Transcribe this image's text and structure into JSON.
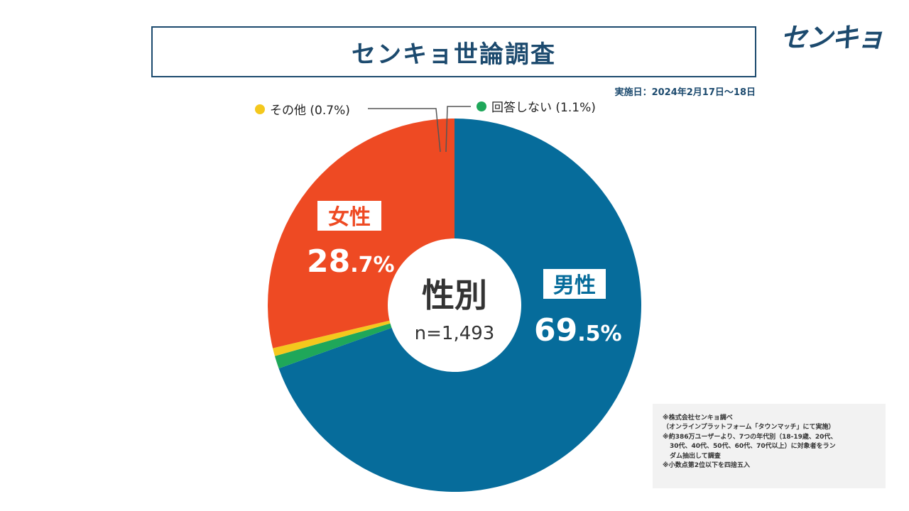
{
  "header": {
    "title": "センキョ世論調査",
    "logo_text": "センキョ",
    "date": "実施日：2024年2月17日～18日"
  },
  "chart_data": {
    "type": "pie",
    "title": "性別",
    "center_label": "性別",
    "center_sub": "n=1,493",
    "slices": [
      {
        "name": "男性",
        "value": 69.5,
        "value_int": "69",
        "value_dec": ".5%",
        "color": "#066c9b"
      },
      {
        "name": "女性",
        "value": 28.7,
        "value_int": "28",
        "value_dec": ".7%",
        "color": "#ee4a23"
      },
      {
        "name": "その他",
        "value": 0.7,
        "label": "その他 (0.7%)",
        "color": "#f4c81d"
      },
      {
        "name": "回答しない",
        "value": 1.1,
        "label": "回答しない (1.1%)",
        "color": "#1fa75a"
      }
    ]
  },
  "notes": {
    "line1": "※株式会社センキョ調べ",
    "line2": "（オンラインプラットフォーム「タウンマッチ」にて実施）",
    "line3": "※約386万ユーザーより、7つの年代別（18-19歳、20代、",
    "line4": "30代、40代、50代、60代、70代以上）に対象者をラン",
    "line5": "ダム抽出して調査",
    "line6": "※小数点第2位以下を四捨五入"
  }
}
